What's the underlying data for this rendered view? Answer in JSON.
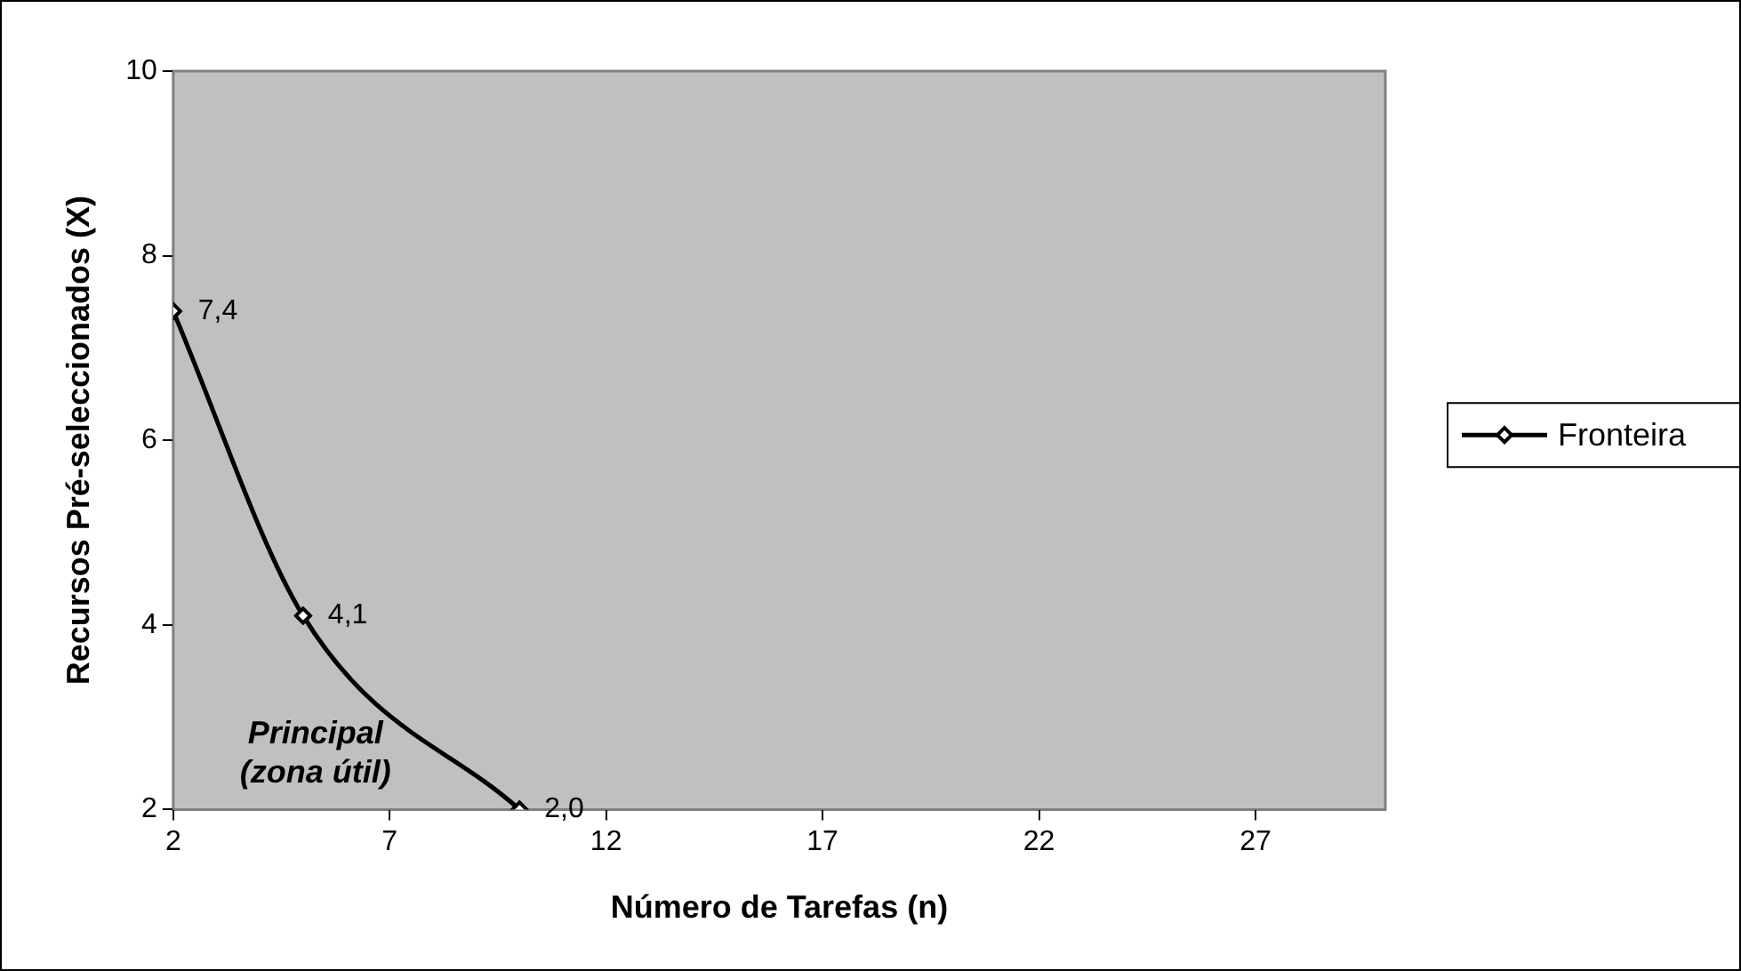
{
  "chart_data": {
    "type": "line",
    "xlabel": "Número de Tarefas (n)",
    "ylabel": "Recursos Pré-seleccionados (X)",
    "x": [
      2,
      5,
      10
    ],
    "series": [
      {
        "name": "Fronteira",
        "color": "#000000",
        "values": [
          7.4,
          4.1,
          2.0
        ],
        "value_labels": [
          "7,4",
          "4,1",
          "2,0"
        ]
      }
    ],
    "xlim": [
      2,
      30
    ],
    "xticks": [
      2,
      7,
      12,
      17,
      22,
      27
    ],
    "ylim": [
      2,
      10
    ],
    "yticks": [
      2,
      4,
      6,
      8,
      10
    ],
    "grid": false,
    "legend": "right",
    "marker": "diamond",
    "line_style": "solid",
    "annotations": [
      "Principal\n(zona útil)"
    ]
  }
}
